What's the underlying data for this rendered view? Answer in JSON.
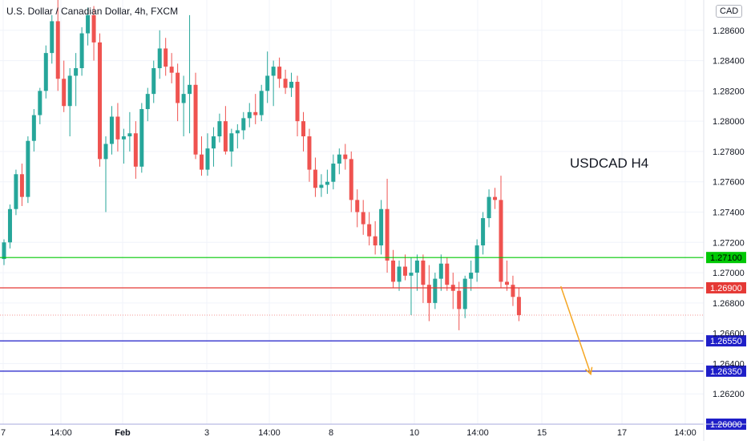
{
  "header": {
    "title": "U.S. Dollar / Canadian Dollar, 4h, FXCM",
    "currency": "CAD"
  },
  "annotation": {
    "text": "USDCAD H4"
  },
  "colors": {
    "up": "#26a69a",
    "down": "#ef5350",
    "grid": "#f0f3fa",
    "axis_text": "#131722",
    "arrow": "#f5a623"
  },
  "chart_data": {
    "type": "candlestick",
    "ylim": [
      1.26,
      1.288
    ],
    "y_ticks": [
      "1.26200",
      "1.26400",
      "1.26600",
      "1.26800",
      "1.27000",
      "1.27200",
      "1.27400",
      "1.27600",
      "1.27800",
      "1.28000",
      "1.28200",
      "1.28400",
      "1.28600"
    ],
    "x_ticks": [
      "7",
      "14:00",
      "Feb",
      "3",
      "14:00",
      "8",
      "10",
      "14:00",
      "15",
      "17",
      "14:00"
    ],
    "levels": [
      {
        "label": "1.27100",
        "value": 1.271,
        "color": "#00c805"
      },
      {
        "label": "1.26900",
        "value": 1.269,
        "color": "#e53935"
      },
      {
        "label": "1.26550",
        "value": 1.2655,
        "color": "#1e1ec8"
      },
      {
        "label": "1.26350",
        "value": 1.2635,
        "color": "#1e1ec8"
      },
      {
        "label": "1.26000",
        "value": 1.26,
        "color": "#1e1ec8"
      }
    ],
    "candles": [
      [
        1.2709,
        1.2722,
        1.2705,
        1.272
      ],
      [
        1.272,
        1.2745,
        1.2716,
        1.2742
      ],
      [
        1.2742,
        1.2768,
        1.2738,
        1.2765
      ],
      [
        1.2765,
        1.2772,
        1.2744,
        1.275
      ],
      [
        1.275,
        1.279,
        1.2746,
        1.2787
      ],
      [
        1.2787,
        1.2808,
        1.278,
        1.2804
      ],
      [
        1.2804,
        1.2822,
        1.2798,
        1.282
      ],
      [
        1.282,
        1.285,
        1.2815,
        1.2845
      ],
      [
        1.2845,
        1.287,
        1.2838,
        1.2866
      ],
      [
        1.2866,
        1.288,
        1.282,
        1.2828
      ],
      [
        1.2828,
        1.284,
        1.2806,
        1.281
      ],
      [
        1.281,
        1.2835,
        1.279,
        1.283
      ],
      [
        1.283,
        1.2845,
        1.281,
        1.2835
      ],
      [
        1.2835,
        1.2862,
        1.283,
        1.2858
      ],
      [
        1.2858,
        1.2875,
        1.285,
        1.287
      ],
      [
        1.287,
        1.2876,
        1.284,
        1.2852
      ],
      [
        1.2852,
        1.2858,
        1.277,
        1.2775
      ],
      [
        1.2775,
        1.279,
        1.274,
        1.2785
      ],
      [
        1.2785,
        1.281,
        1.2778,
        1.2803
      ],
      [
        1.2803,
        1.2812,
        1.278,
        1.2788
      ],
      [
        1.2788,
        1.2795,
        1.2772,
        1.279
      ],
      [
        1.279,
        1.2806,
        1.278,
        1.2792
      ],
      [
        1.2792,
        1.28,
        1.2762,
        1.277
      ],
      [
        1.277,
        1.2812,
        1.2766,
        1.2808
      ],
      [
        1.2808,
        1.2822,
        1.28,
        1.2818
      ],
      [
        1.2818,
        1.284,
        1.2812,
        1.2835
      ],
      [
        1.2835,
        1.286,
        1.2828,
        1.2848
      ],
      [
        1.2848,
        1.2855,
        1.283,
        1.2836
      ],
      [
        1.2836,
        1.2845,
        1.2825,
        1.2832
      ],
      [
        1.2832,
        1.2838,
        1.28,
        1.2812
      ],
      [
        1.2812,
        1.283,
        1.279,
        1.2818
      ],
      [
        1.2818,
        1.287,
        1.2792,
        1.2824
      ],
      [
        1.2824,
        1.2832,
        1.2775,
        1.2778
      ],
      [
        1.2778,
        1.279,
        1.2764,
        1.2768
      ],
      [
        1.2768,
        1.2792,
        1.2764,
        1.2782
      ],
      [
        1.2782,
        1.2796,
        1.277,
        1.279
      ],
      [
        1.279,
        1.2805,
        1.2786,
        1.28
      ],
      [
        1.28,
        1.281,
        1.2778,
        1.278
      ],
      [
        1.278,
        1.2795,
        1.277,
        1.2792
      ],
      [
        1.2792,
        1.2798,
        1.2782,
        1.2794
      ],
      [
        1.2794,
        1.2806,
        1.2788,
        1.2802
      ],
      [
        1.2802,
        1.2812,
        1.2796,
        1.2806
      ],
      [
        1.2806,
        1.2818,
        1.2798,
        1.2804
      ],
      [
        1.2804,
        1.2824,
        1.28,
        1.282
      ],
      [
        1.282,
        1.2846,
        1.2812,
        1.283
      ],
      [
        1.283,
        1.284,
        1.281,
        1.2836
      ],
      [
        1.2836,
        1.2842,
        1.2822,
        1.2828
      ],
      [
        1.2828,
        1.2834,
        1.2818,
        1.2822
      ],
      [
        1.2822,
        1.2832,
        1.2816,
        1.2826
      ],
      [
        1.2826,
        1.283,
        1.279,
        1.28
      ],
      [
        1.28,
        1.2806,
        1.278,
        1.279
      ],
      [
        1.279,
        1.2795,
        1.276,
        1.2768
      ],
      [
        1.2768,
        1.2776,
        1.275,
        1.2756
      ],
      [
        1.2756,
        1.2765,
        1.275,
        1.2758
      ],
      [
        1.2758,
        1.2768,
        1.2752,
        1.276
      ],
      [
        1.276,
        1.2778,
        1.2755,
        1.2772
      ],
      [
        1.2772,
        1.2782,
        1.2765,
        1.2778
      ],
      [
        1.2778,
        1.2785,
        1.2768,
        1.2775
      ],
      [
        1.2775,
        1.278,
        1.274,
        1.2748
      ],
      [
        1.2748,
        1.2755,
        1.273,
        1.274
      ],
      [
        1.274,
        1.2748,
        1.2725,
        1.2732
      ],
      [
        1.2732,
        1.274,
        1.2718,
        1.2724
      ],
      [
        1.2724,
        1.2734,
        1.2712,
        1.2718
      ],
      [
        1.2718,
        1.2748,
        1.2712,
        1.2742
      ],
      [
        1.2742,
        1.2762,
        1.27,
        1.2708
      ],
      [
        1.2708,
        1.2715,
        1.269,
        1.2694
      ],
      [
        1.2694,
        1.2708,
        1.2688,
        1.2704
      ],
      [
        1.2704,
        1.2712,
        1.2695,
        1.2698
      ],
      [
        1.2698,
        1.271,
        1.2672,
        1.27
      ],
      [
        1.27,
        1.2712,
        1.2688,
        1.2708
      ],
      [
        1.2708,
        1.2712,
        1.268,
        1.2692
      ],
      [
        1.2692,
        1.2705,
        1.2668,
        1.268
      ],
      [
        1.268,
        1.27,
        1.2676,
        1.2696
      ],
      [
        1.2696,
        1.2712,
        1.2688,
        1.2706
      ],
      [
        1.2706,
        1.271,
        1.2688,
        1.2692
      ],
      [
        1.2692,
        1.27,
        1.2676,
        1.2688
      ],
      [
        1.2688,
        1.2694,
        1.2662,
        1.2676
      ],
      [
        1.2676,
        1.2698,
        1.267,
        1.2696
      ],
      [
        1.2696,
        1.2708,
        1.2688,
        1.27
      ],
      [
        1.27,
        1.2722,
        1.2694,
        1.2718
      ],
      [
        1.2718,
        1.274,
        1.2712,
        1.2736
      ],
      [
        1.2736,
        1.2755,
        1.273,
        1.275
      ],
      [
        1.275,
        1.2756,
        1.2742,
        1.2748
      ],
      [
        1.2748,
        1.2764,
        1.269,
        1.2694
      ],
      [
        1.2694,
        1.2708,
        1.2688,
        1.2692
      ],
      [
        1.2692,
        1.2698,
        1.2678,
        1.2684
      ],
      [
        1.2684,
        1.269,
        1.2668,
        1.2672
      ]
    ],
    "arrow": {
      "from": {
        "candle_index": 93,
        "value": 1.2691
      },
      "to": {
        "candle_index": 98,
        "value": 1.2633
      }
    }
  }
}
